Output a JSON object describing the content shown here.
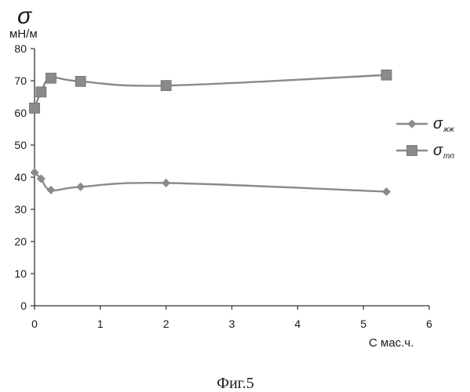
{
  "chart_data": {
    "type": "line",
    "y_symbol": "σ",
    "y_unit": "мН/м",
    "xlabel": "С мас.ч.",
    "xlim": [
      0,
      6
    ],
    "ylim": [
      0,
      80
    ],
    "x_ticks": [
      "0",
      "1",
      "2",
      "3",
      "4",
      "5",
      "6"
    ],
    "y_ticks": [
      "0",
      "10",
      "20",
      "30",
      "40",
      "50",
      "60",
      "70",
      "80"
    ],
    "grid": false,
    "legend_position": "right",
    "series": [
      {
        "name": "σ",
        "name_sub": "жж",
        "marker": "diamond",
        "color": "#8a8a8a",
        "x": [
          0,
          0.1,
          0.25,
          0.7,
          2.0,
          5.35
        ],
        "y": [
          41.5,
          39.5,
          36,
          37,
          38.2,
          35.5
        ]
      },
      {
        "name": "σ",
        "name_sub": "тп",
        "marker": "square",
        "color": "#8a8a8a",
        "x": [
          0,
          0.1,
          0.25,
          0.7,
          2.0,
          5.35
        ],
        "y": [
          61.5,
          66.5,
          70.8,
          69.8,
          68.5,
          71.8
        ]
      }
    ]
  },
  "caption": "Фиг.5"
}
